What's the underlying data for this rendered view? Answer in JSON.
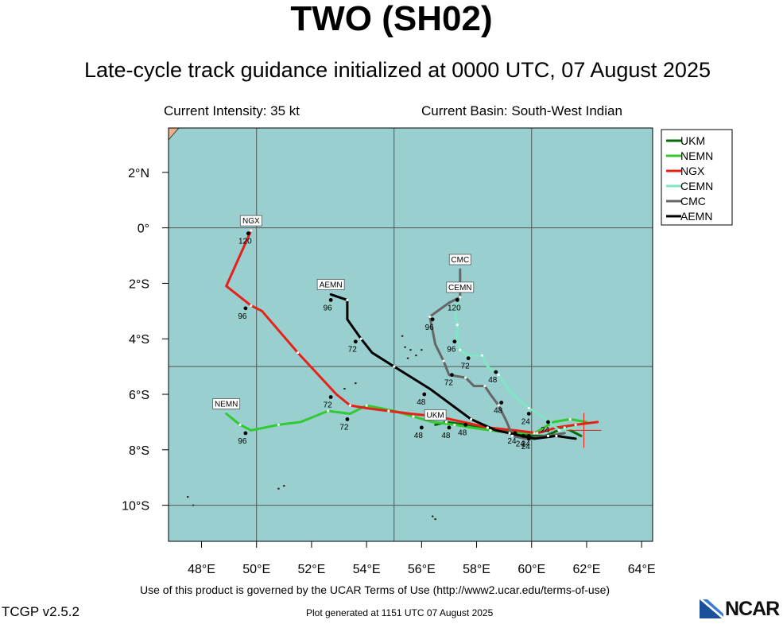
{
  "header": {
    "title": "TWO (SH02)",
    "subtitle": "Late-cycle track guidance initialized at 0000 UTC, 07 August 2025",
    "intensity": "Current Intensity: 35 kt",
    "basin": "Current Basin: South-West Indian"
  },
  "footer": {
    "terms": "Use of this product is governed by the UCAR Terms of Use (http://www2.ucar.edu/terms-of-use)",
    "version": "TCGP v2.5.2",
    "generated": "Plot generated at 1151 UTC   07 August 2025",
    "logo": "NCAR"
  },
  "colors": {
    "ocean": "#99cfcf",
    "land": "#e8b088",
    "UKM": "#0a6a0a",
    "NEMN": "#33c933",
    "NGX": "#e62117",
    "CEMN": "#80e6c4",
    "CMC": "#666666",
    "AEMN": "#000000"
  },
  "chart_data": {
    "type": "line",
    "plot": "storm track map",
    "xlim": [
      46.8,
      64.4
    ],
    "ylim": [
      -11.3,
      3.6
    ],
    "x_ticks": [
      48,
      50,
      52,
      54,
      56,
      58,
      60,
      62,
      64
    ],
    "x_tick_labels": [
      "48°E",
      "50°E",
      "52°E",
      "54°E",
      "56°E",
      "58°E",
      "60°E",
      "62°E",
      "64°E"
    ],
    "y_ticks": [
      2,
      0,
      -2,
      -4,
      -6,
      -8,
      -10
    ],
    "y_tick_labels": [
      "2°N",
      "0°",
      "2°S",
      "4°S",
      "6°S",
      "8°S",
      "10°S"
    ],
    "grid_lon": [
      50,
      55,
      60
    ],
    "grid_lat": [
      0,
      -5,
      -10
    ],
    "current_position": {
      "lon": 61.9,
      "lat": -7.3
    },
    "legend": [
      "UKM",
      "NEMN",
      "NGX",
      "CEMN",
      "CMC",
      "AEMN"
    ],
    "legend_position": "top-right, outside plot",
    "series": [
      {
        "name": "UKM",
        "points": [
          [
            61.8,
            -7.5
          ],
          [
            61.2,
            -7.2
          ],
          [
            60.5,
            -7.5
          ],
          [
            59.9,
            -7.5
          ],
          [
            59.2,
            -7.3
          ],
          [
            58.4,
            -7.2
          ],
          [
            57.6,
            -7.1
          ],
          [
            56.9,
            -7.0
          ],
          [
            56.5,
            -7.1
          ]
        ],
        "labels": [
          {
            "text": "24",
            "lon": 59.9,
            "lat": -7.5
          },
          {
            "text": "48",
            "lon": 57.6,
            "lat": -7.1
          }
        ],
        "end_label": "UKM"
      },
      {
        "name": "NEMN",
        "points": [
          [
            62.0,
            -7.0
          ],
          [
            61.4,
            -6.9
          ],
          [
            60.8,
            -7.0
          ],
          [
            60.1,
            -7.4
          ],
          [
            59.4,
            -7.4
          ],
          [
            58.5,
            -7.3
          ],
          [
            57.8,
            -7.2
          ],
          [
            57.2,
            -7.1
          ],
          [
            56.4,
            -7.0
          ],
          [
            55.7,
            -6.8
          ],
          [
            55.0,
            -6.6
          ],
          [
            54.0,
            -6.4
          ],
          [
            53.4,
            -6.7
          ],
          [
            52.6,
            -6.6
          ],
          [
            51.6,
            -7.0
          ],
          [
            50.8,
            -7.1
          ],
          [
            49.8,
            -7.3
          ],
          [
            49.4,
            -7.1
          ],
          [
            48.9,
            -6.7
          ]
        ],
        "labels": [
          {
            "text": "24",
            "lon": 59.7,
            "lat": -7.5
          },
          {
            "text": "48",
            "lon": 57.0,
            "lat": -7.2
          },
          {
            "text": "72",
            "lon": 53.3,
            "lat": -6.9
          },
          {
            "text": "96",
            "lon": 49.6,
            "lat": -7.4
          }
        ],
        "end_label": "NEMN"
      },
      {
        "name": "NGX",
        "points": [
          [
            62.4,
            -7.0
          ],
          [
            61.6,
            -7.1
          ],
          [
            60.9,
            -7.2
          ],
          [
            60.2,
            -7.4
          ],
          [
            59.4,
            -7.3
          ],
          [
            58.4,
            -7.2
          ],
          [
            57.5,
            -7.0
          ],
          [
            56.6,
            -6.8
          ],
          [
            55.6,
            -6.7
          ],
          [
            54.8,
            -6.6
          ],
          [
            54.0,
            -6.5
          ],
          [
            53.4,
            -6.4
          ],
          [
            52.9,
            -6.0
          ],
          [
            51.5,
            -4.5
          ],
          [
            50.2,
            -3.0
          ],
          [
            49.8,
            -2.8
          ],
          [
            48.9,
            -2.1
          ],
          [
            49.8,
            -0.1
          ]
        ],
        "labels": [
          {
            "text": "24",
            "lon": 60.6,
            "lat": -7.0
          },
          {
            "text": "48",
            "lon": 56.0,
            "lat": -7.2
          },
          {
            "text": "72",
            "lon": 52.7,
            "lat": -6.1
          },
          {
            "text": "96",
            "lon": 49.6,
            "lat": -2.9
          },
          {
            "text": "120",
            "lon": 49.7,
            "lat": -0.2
          }
        ],
        "end_label": "NGX"
      },
      {
        "name": "CEMN",
        "points": [
          [
            61.6,
            -7.2
          ],
          [
            61.0,
            -7.3
          ],
          [
            60.4,
            -6.8
          ],
          [
            59.9,
            -6.5
          ],
          [
            59.3,
            -6.0
          ],
          [
            58.8,
            -5.3
          ],
          [
            58.4,
            -5.0
          ],
          [
            58.2,
            -4.6
          ],
          [
            57.7,
            -4.6
          ],
          [
            57.4,
            -4.4
          ],
          [
            57.3,
            -4.0
          ],
          [
            57.3,
            -3.5
          ],
          [
            57.2,
            -3.0
          ],
          [
            57.4,
            -2.5
          ]
        ],
        "labels": [
          {
            "text": "24",
            "lon": 59.9,
            "lat": -6.7
          },
          {
            "text": "48",
            "lon": 58.7,
            "lat": -5.2
          },
          {
            "text": "72",
            "lon": 57.7,
            "lat": -4.7
          },
          {
            "text": "96",
            "lon": 57.2,
            "lat": -4.1
          },
          {
            "text": "120",
            "lon": 57.3,
            "lat": -2.6
          }
        ],
        "end_label": "CEMN"
      },
      {
        "name": "CMC",
        "points": [
          [
            61.2,
            -7.4
          ],
          [
            60.6,
            -7.5
          ],
          [
            59.8,
            -7.6
          ],
          [
            59.3,
            -7.5
          ],
          [
            59.1,
            -7.0
          ],
          [
            58.8,
            -6.4
          ],
          [
            58.5,
            -6.0
          ],
          [
            58.3,
            -5.7
          ],
          [
            57.9,
            -5.7
          ],
          [
            57.6,
            -5.4
          ],
          [
            57.0,
            -5.3
          ],
          [
            56.8,
            -4.8
          ],
          [
            56.5,
            -4.2
          ],
          [
            56.3,
            -3.2
          ],
          [
            57.0,
            -2.7
          ],
          [
            57.4,
            -2.5
          ],
          [
            57.4,
            -1.5
          ]
        ],
        "labels": [
          {
            "text": "24",
            "lon": 59.9,
            "lat": -7.6
          },
          {
            "text": "48",
            "lon": 58.9,
            "lat": -6.3
          },
          {
            "text": "72",
            "lon": 57.1,
            "lat": -5.3
          },
          {
            "text": "96",
            "lon": 56.4,
            "lat": -3.3
          }
        ],
        "end_label": "CMC"
      },
      {
        "name": "AEMN",
        "points": [
          [
            61.6,
            -7.6
          ],
          [
            60.9,
            -7.5
          ],
          [
            60.1,
            -7.6
          ],
          [
            59.2,
            -7.4
          ],
          [
            58.7,
            -7.3
          ],
          [
            57.8,
            -6.9
          ],
          [
            56.3,
            -5.8
          ],
          [
            55.0,
            -5.0
          ],
          [
            54.2,
            -4.5
          ],
          [
            53.8,
            -4.0
          ],
          [
            53.3,
            -3.3
          ],
          [
            53.3,
            -2.6
          ],
          [
            52.7,
            -2.4
          ]
        ],
        "labels": [
          {
            "text": "24",
            "lon": 59.4,
            "lat": -7.4
          },
          {
            "text": "48",
            "lon": 56.1,
            "lat": -6.0
          },
          {
            "text": "72",
            "lon": 53.6,
            "lat": -4.1
          },
          {
            "text": "96",
            "lon": 52.7,
            "lat": -2.6
          }
        ],
        "end_label": "AEMN"
      }
    ]
  }
}
